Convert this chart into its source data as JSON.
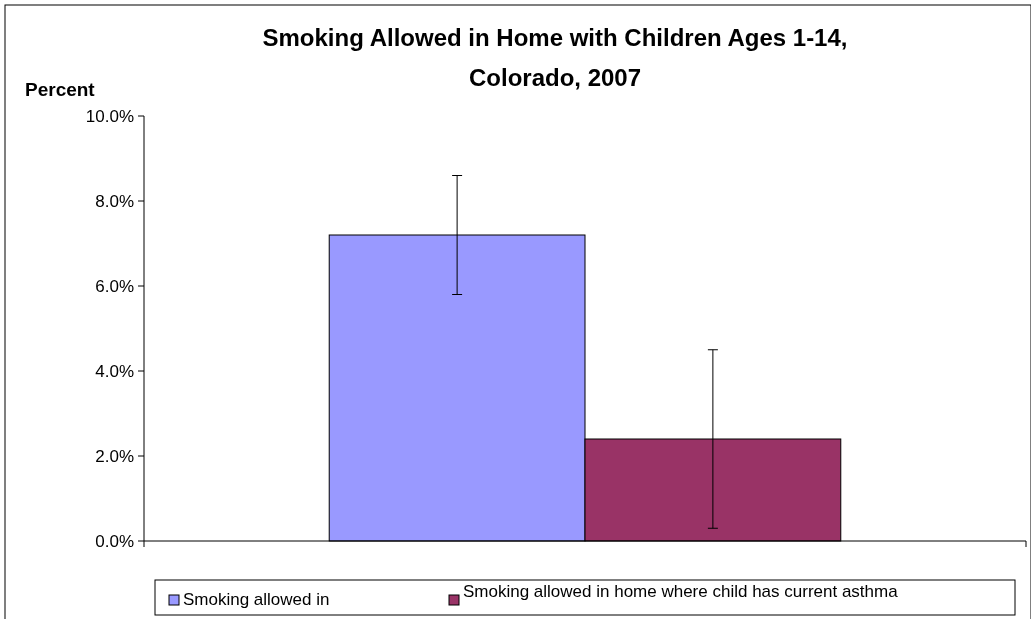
{
  "chart_data": {
    "type": "bar",
    "title": "Smoking Allowed in Home with Children Ages 1-14, Colorado, 2007",
    "ylabel": "Percent",
    "categories": [
      null
    ],
    "series": [
      {
        "name": "Smoking allowed in",
        "color": "#9999ff",
        "values": [
          7.2
        ],
        "errors": [
          [
            5.8,
            8.6
          ]
        ]
      },
      {
        "name": "Smoking allowed in home where child has current asthma",
        "color": "#993366",
        "values": [
          2.4
        ],
        "errors": [
          [
            0.3,
            4.5
          ]
        ]
      }
    ],
    "ylim": [
      0,
      10
    ],
    "yticks": [
      {
        "value": 0,
        "label": "0.0%"
      },
      {
        "value": 2,
        "label": "2.0%"
      },
      {
        "value": 4,
        "label": "4.0%"
      },
      {
        "value": 6,
        "label": "6.0%"
      },
      {
        "value": 8,
        "label": "8.0%"
      },
      {
        "value": 10,
        "label": "10.0%"
      }
    ],
    "grid": false,
    "legend": "bottom"
  }
}
